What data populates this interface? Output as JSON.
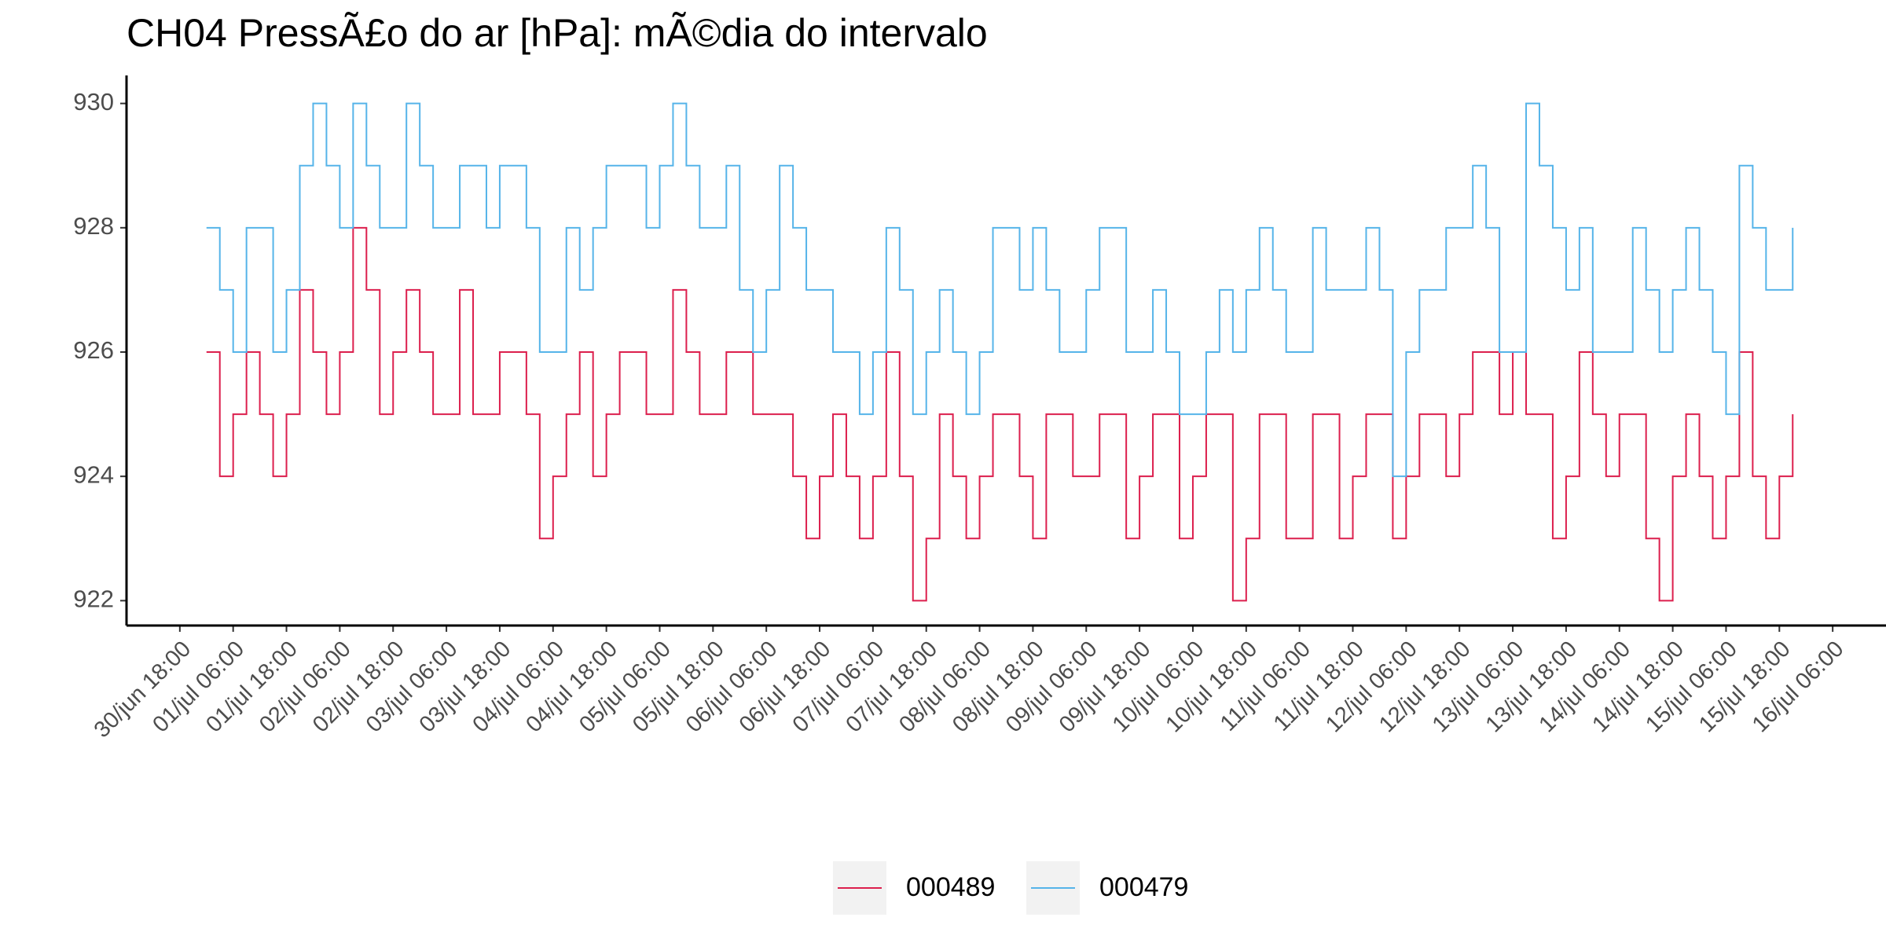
{
  "chart_data": {
    "type": "step",
    "title": "CH04 PressÃ£o do ar [hPa]: mÃ©dia do intervalo",
    "x": [
      "01/jul 00:00",
      "01/jul 03:00",
      "01/jul 06:00",
      "01/jul 09:00",
      "01/jul 12:00",
      "01/jul 15:00",
      "01/jul 18:00",
      "01/jul 21:00",
      "02/jul 00:00",
      "02/jul 03:00",
      "02/jul 06:00",
      "02/jul 09:00",
      "02/jul 12:00",
      "02/jul 15:00",
      "02/jul 18:00",
      "02/jul 21:00",
      "03/jul 00:00",
      "03/jul 03:00",
      "03/jul 06:00",
      "03/jul 09:00",
      "03/jul 12:00",
      "03/jul 15:00",
      "03/jul 18:00",
      "03/jul 21:00",
      "04/jul 00:00",
      "04/jul 03:00",
      "04/jul 06:00",
      "04/jul 09:00",
      "04/jul 12:00",
      "04/jul 15:00",
      "04/jul 18:00",
      "04/jul 21:00",
      "05/jul 00:00",
      "05/jul 03:00",
      "05/jul 06:00",
      "05/jul 09:00",
      "05/jul 12:00",
      "05/jul 15:00",
      "05/jul 18:00",
      "05/jul 21:00",
      "06/jul 00:00",
      "06/jul 03:00",
      "06/jul 06:00",
      "06/jul 09:00",
      "06/jul 12:00",
      "06/jul 15:00",
      "06/jul 18:00",
      "06/jul 21:00",
      "07/jul 00:00",
      "07/jul 03:00",
      "07/jul 06:00",
      "07/jul 09:00",
      "07/jul 12:00",
      "07/jul 15:00",
      "07/jul 18:00",
      "07/jul 21:00",
      "08/jul 00:00",
      "08/jul 03:00",
      "08/jul 06:00",
      "08/jul 09:00",
      "08/jul 12:00",
      "08/jul 15:00",
      "08/jul 18:00",
      "08/jul 21:00",
      "09/jul 00:00",
      "09/jul 03:00",
      "09/jul 06:00",
      "09/jul 09:00",
      "09/jul 12:00",
      "09/jul 15:00",
      "09/jul 18:00",
      "09/jul 21:00",
      "10/jul 00:00",
      "10/jul 03:00",
      "10/jul 06:00",
      "10/jul 09:00",
      "10/jul 12:00",
      "10/jul 15:00",
      "10/jul 18:00",
      "10/jul 21:00",
      "11/jul 00:00",
      "11/jul 03:00",
      "11/jul 06:00",
      "11/jul 09:00",
      "11/jul 12:00",
      "11/jul 15:00",
      "11/jul 18:00",
      "11/jul 21:00",
      "12/jul 00:00",
      "12/jul 03:00",
      "12/jul 06:00",
      "12/jul 09:00",
      "12/jul 12:00",
      "12/jul 15:00",
      "12/jul 18:00",
      "12/jul 21:00",
      "13/jul 00:00",
      "13/jul 03:00",
      "13/jul 06:00",
      "13/jul 09:00",
      "13/jul 12:00",
      "13/jul 15:00",
      "13/jul 18:00",
      "13/jul 21:00",
      "14/jul 00:00",
      "14/jul 03:00",
      "14/jul 06:00",
      "14/jul 09:00",
      "14/jul 12:00",
      "14/jul 15:00",
      "14/jul 18:00",
      "14/jul 21:00",
      "15/jul 00:00",
      "15/jul 03:00",
      "15/jul 06:00",
      "15/jul 09:00",
      "15/jul 12:00",
      "15/jul 15:00",
      "15/jul 18:00",
      "15/jul 21:00"
    ],
    "series": [
      {
        "name": "000489",
        "color": "#dc1f4d",
        "values": [
          926,
          924,
          925,
          926,
          925,
          924,
          925,
          927,
          926,
          925,
          926,
          928,
          927,
          925,
          926,
          927,
          926,
          925,
          925,
          927,
          925,
          925,
          926,
          926,
          925,
          923,
          924,
          925,
          926,
          924,
          925,
          926,
          926,
          925,
          925,
          927,
          926,
          925,
          925,
          926,
          926,
          925,
          925,
          925,
          924,
          923,
          924,
          925,
          924,
          923,
          924,
          926,
          924,
          922,
          923,
          925,
          924,
          923,
          924,
          925,
          925,
          924,
          923,
          925,
          925,
          924,
          924,
          925,
          925,
          923,
          924,
          925,
          925,
          923,
          924,
          925,
          925,
          922,
          923,
          925,
          925,
          923,
          923,
          925,
          925,
          923,
          924,
          925,
          925,
          923,
          924,
          925,
          925,
          924,
          925,
          926,
          926,
          925,
          926,
          925,
          925,
          923,
          924,
          926,
          925,
          924,
          925,
          925,
          923,
          922,
          924,
          925,
          924,
          923,
          924,
          926,
          924,
          923,
          924,
          925
        ]
      },
      {
        "name": "000479",
        "color": "#56b4e9",
        "values": [
          928,
          927,
          926,
          928,
          928,
          926,
          927,
          929,
          930,
          929,
          928,
          930,
          929,
          928,
          928,
          930,
          929,
          928,
          928,
          929,
          929,
          928,
          929,
          929,
          928,
          926,
          926,
          928,
          927,
          928,
          929,
          929,
          929,
          928,
          929,
          930,
          929,
          928,
          928,
          929,
          927,
          926,
          927,
          929,
          928,
          927,
          927,
          926,
          926,
          925,
          926,
          928,
          927,
          925,
          926,
          927,
          926,
          925,
          926,
          928,
          928,
          927,
          928,
          927,
          926,
          926,
          927,
          928,
          928,
          926,
          926,
          927,
          926,
          925,
          925,
          926,
          927,
          926,
          927,
          928,
          927,
          926,
          926,
          928,
          927,
          927,
          927,
          928,
          927,
          924,
          926,
          927,
          927,
          928,
          928,
          929,
          928,
          926,
          926,
          930,
          929,
          928,
          927,
          928,
          926,
          926,
          926,
          928,
          927,
          926,
          927,
          928,
          927,
          926,
          925,
          929,
          928,
          927,
          927,
          928
        ]
      }
    ],
    "xlim": [
      "30/jun 06:00",
      "16/jul 18:00"
    ],
    "xticks": [
      "30/jun 18:00",
      "01/jul 06:00",
      "01/jul 18:00",
      "02/jul 06:00",
      "02/jul 18:00",
      "03/jul 06:00",
      "03/jul 18:00",
      "04/jul 06:00",
      "04/jul 18:00",
      "05/jul 06:00",
      "05/jul 18:00",
      "06/jul 06:00",
      "06/jul 18:00",
      "07/jul 06:00",
      "07/jul 18:00",
      "08/jul 06:00",
      "08/jul 18:00",
      "09/jul 06:00",
      "09/jul 18:00",
      "10/jul 06:00",
      "10/jul 18:00",
      "11/jul 06:00",
      "11/jul 18:00",
      "12/jul 06:00",
      "12/jul 18:00",
      "13/jul 06:00",
      "13/jul 18:00",
      "14/jul 06:00",
      "14/jul 18:00",
      "15/jul 06:00",
      "15/jul 18:00",
      "16/jul 06:00"
    ],
    "ylim": [
      921.6,
      930.4
    ],
    "yticks": [
      922,
      924,
      926,
      928,
      930
    ],
    "grid": false,
    "legend": "bottom"
  }
}
